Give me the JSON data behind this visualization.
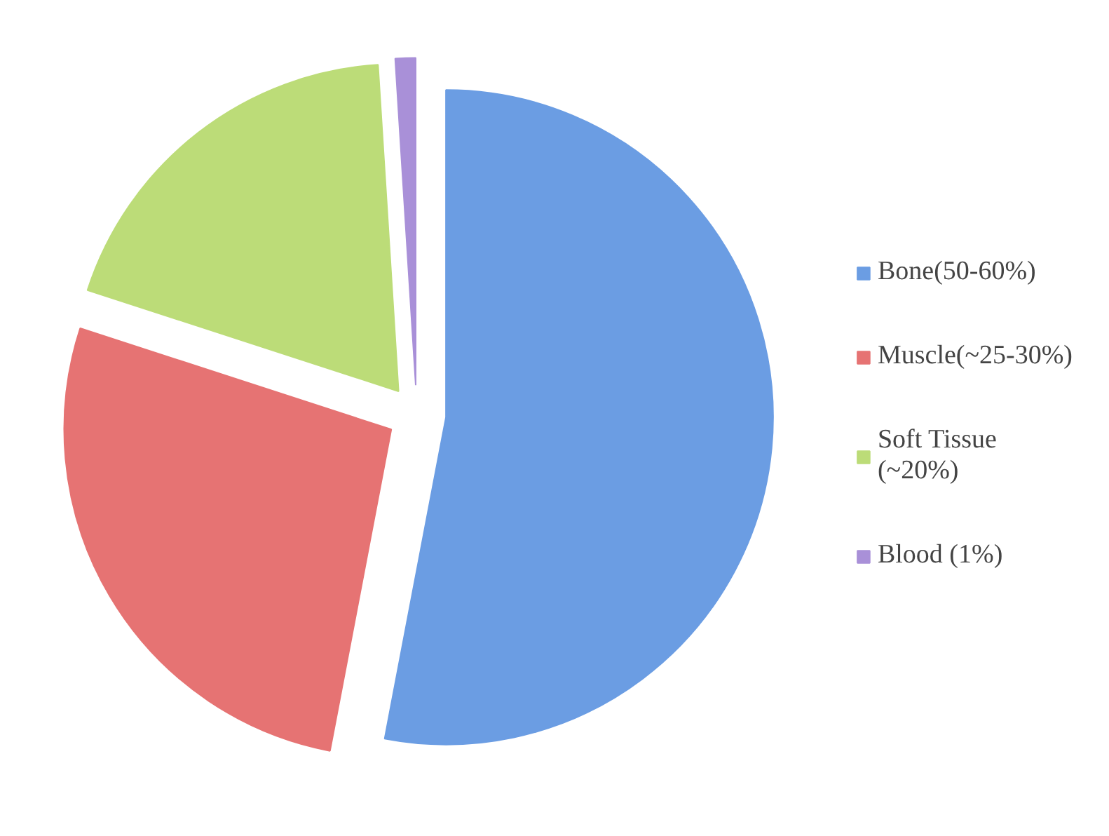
{
  "chart_data": {
    "type": "pie",
    "categories": [
      "Bone(50-60%)",
      "Muscle(~25-30%)",
      "Soft Tissue (~20%)",
      "Blood (1%)"
    ],
    "values": [
      53,
      27,
      19,
      1
    ],
    "colors": [
      "#6b9de3",
      "#e67373",
      "#bcdc78",
      "#a990d8"
    ],
    "legend": "right"
  }
}
